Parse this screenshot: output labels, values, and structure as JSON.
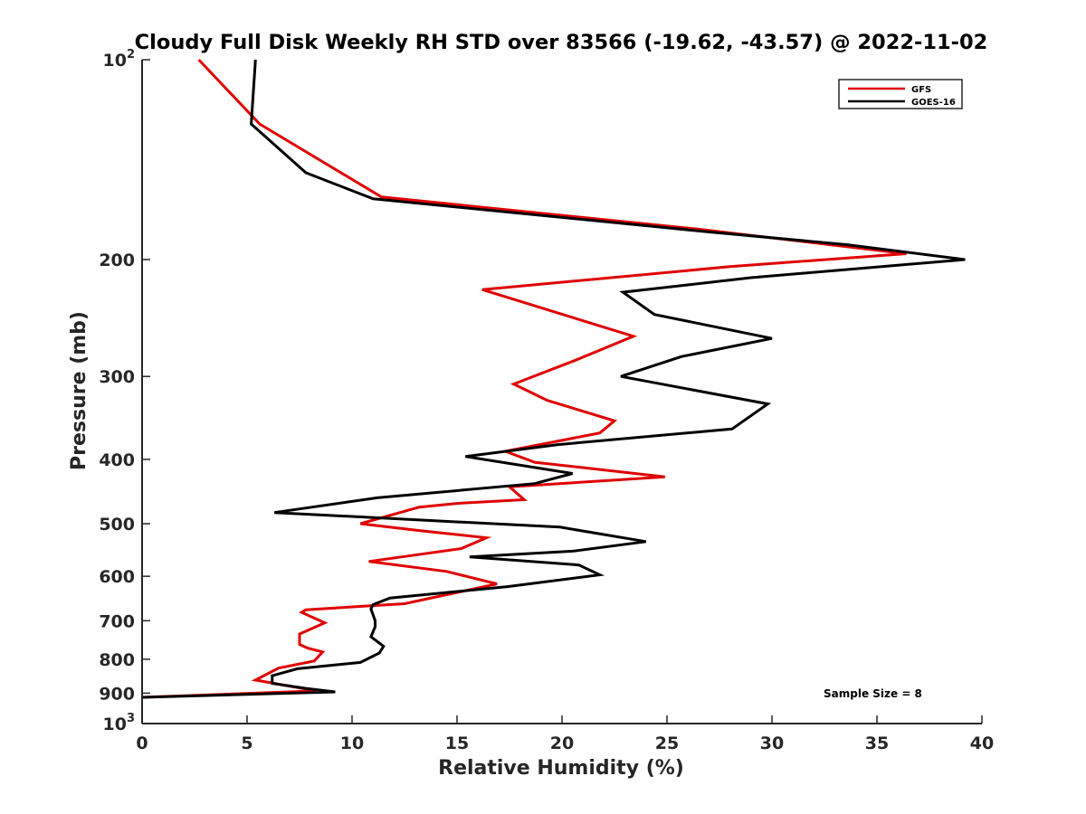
{
  "chart_data": {
    "type": "line",
    "title": "Cloudy Full Disk Weekly RH STD over 83566 (-19.62, -43.57) @ 2022-11-02",
    "xlabel": "Relative Humidity (%)",
    "ylabel": "Pressure (mb)",
    "xlim": [
      0,
      40
    ],
    "ylim": [
      100,
      1000
    ],
    "y_scale": "log",
    "y_reversed": true,
    "grid": false,
    "legend_position": "top-right",
    "annotation": "Sample Size = 8",
    "x_ticks": [
      0,
      5,
      10,
      15,
      20,
      25,
      30,
      35,
      40
    ],
    "x_tick_labels": [
      "0",
      "5",
      "10",
      "15",
      "20",
      "25",
      "30",
      "35",
      "40"
    ],
    "y_ticks": [
      100,
      200,
      300,
      400,
      500,
      600,
      700,
      800,
      900,
      1000
    ],
    "y_tick_labels": [
      {
        "base": "10",
        "exp": "2"
      },
      {
        "base": "200",
        "exp": ""
      },
      {
        "base": "300",
        "exp": ""
      },
      {
        "base": "400",
        "exp": ""
      },
      {
        "base": "500",
        "exp": ""
      },
      {
        "base": "600",
        "exp": ""
      },
      {
        "base": "700",
        "exp": ""
      },
      {
        "base": "800",
        "exp": ""
      },
      {
        "base": "900",
        "exp": ""
      },
      {
        "base": "10",
        "exp": "3"
      }
    ],
    "series": [
      {
        "name": "GFS",
        "color": "#e00000",
        "x": [
          2.7,
          5.6,
          11.4,
          26.5,
          36.4,
          28.0,
          16.2,
          23.4,
          20.6,
          17.7,
          19.3,
          22.5,
          21.8,
          17.3,
          18.7,
          24.9,
          17.5,
          18.2,
          15.0,
          13.2,
          10.4,
          13.2,
          16.4,
          15.2,
          10.8,
          14.5,
          16.9,
          12.5,
          7.8,
          7.6,
          8.7,
          7.5,
          7.5,
          7.9,
          8.6,
          8.2,
          6.5,
          5.4,
          8.3,
          0.0
        ],
        "y": [
          100,
          125,
          161,
          180,
          196,
          205,
          222,
          261,
          284,
          308,
          326,
          350,
          365,
          389,
          404,
          425,
          440,
          460,
          466,
          472,
          500,
          512,
          525,
          545,
          570,
          590,
          616,
          660,
          674,
          680,
          705,
          733,
          760,
          770,
          780,
          805,
          825,
          860,
          893,
          913
        ]
      },
      {
        "name": "GOES-16",
        "color": "#000000",
        "x": [
          5.4,
          5.2,
          7.8,
          11.0,
          27.2,
          33.6,
          39.2,
          29.0,
          22.9,
          24.4,
          30.0,
          25.7,
          22.8,
          29.8,
          28.1,
          19.8,
          15.4,
          20.5,
          18.7,
          11.2,
          6.3,
          19.9,
          24.0,
          20.5,
          15.6,
          20.8,
          21.8,
          17.4,
          11.8,
          11.0,
          10.9,
          11.1,
          11.1,
          10.9,
          11.5,
          11.3,
          10.4,
          7.4,
          6.2,
          6.2,
          7.8,
          9.2,
          0.0
        ],
        "y": [
          100,
          125,
          148,
          162,
          182,
          190,
          200,
          213,
          224,
          242,
          263,
          280,
          300,
          330,
          360,
          380,
          396,
          420,
          435,
          457,
          481,
          506,
          532,
          550,
          561,
          577,
          597,
          622,
          647,
          662,
          672,
          700,
          715,
          740,
          765,
          783,
          809,
          827,
          847,
          870,
          885,
          896,
          913
        ]
      }
    ]
  }
}
